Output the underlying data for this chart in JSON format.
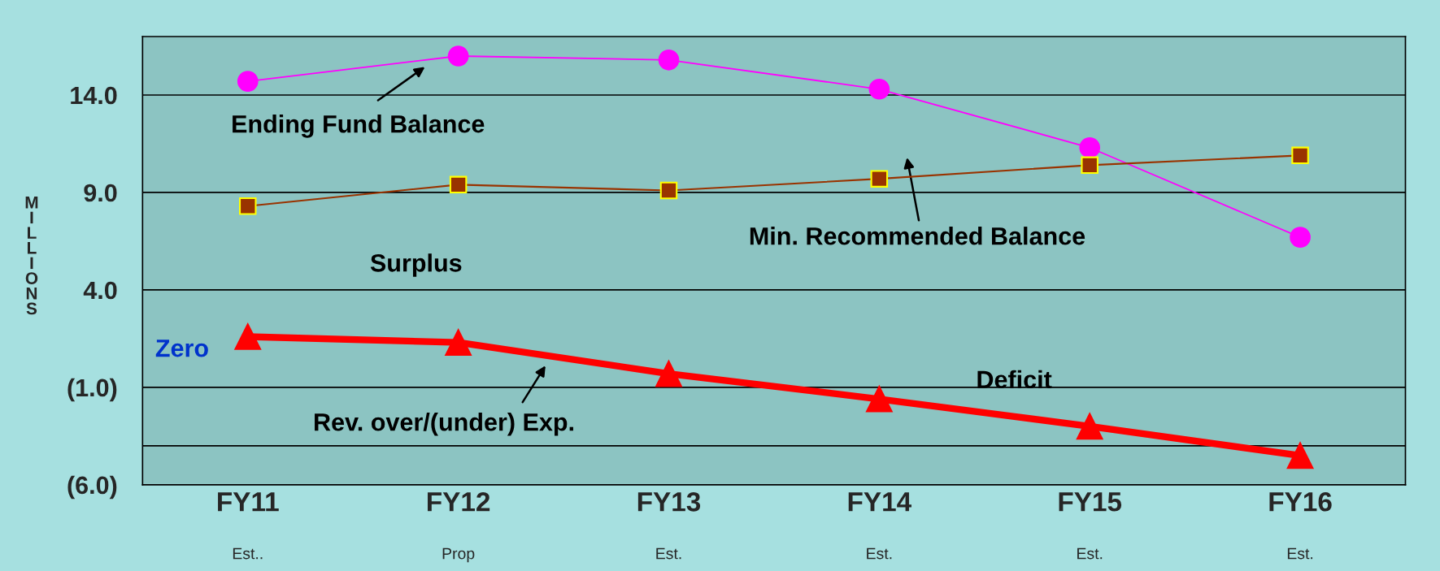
{
  "chart_data": {
    "type": "line",
    "ylabel": "MILLIONS",
    "categories": [
      "FY11\nEst..",
      "FY12\nProp",
      "FY13\nEst.",
      "FY14\nEst.",
      "FY15\nEst.",
      "FY16\nEst."
    ],
    "series": [
      {
        "color": "#ff00ff",
        "marker": "circle",
        "values": [
          14.7,
          16.0,
          15.8,
          14.3,
          11.3,
          6.7
        ]
      },
      {
        "color": "#993300",
        "marker": "square",
        "values": [
          8.3,
          9.4,
          9.1,
          9.7,
          10.4,
          10.9
        ]
      },
      {
        "color": "#ff0000",
        "marker": "triangle",
        "values": [
          1.6,
          1.3,
          -0.3,
          -1.6,
          -3.0,
          -4.5
        ]
      }
    ],
    "ylim": [
      -6,
      17
    ],
    "yticks": [
      {
        "value": 14,
        "label": "14.0"
      },
      {
        "value": 9,
        "label": "9.0"
      },
      {
        "value": 4,
        "label": "4.0"
      },
      {
        "value": -1,
        "label": "(1.0)"
      },
      {
        "value": -6,
        "label": "(6.0)"
      }
    ],
    "ref_lines": [
      {
        "axis": "y",
        "value": -4,
        "color": "#000000"
      }
    ],
    "grid": "y",
    "annotations": [
      "Ending Fund Balance",
      "Min. Recommended Balance",
      "Surplus",
      "Deficit",
      "Zero",
      "Rev. over/(under) Exp."
    ]
  }
}
